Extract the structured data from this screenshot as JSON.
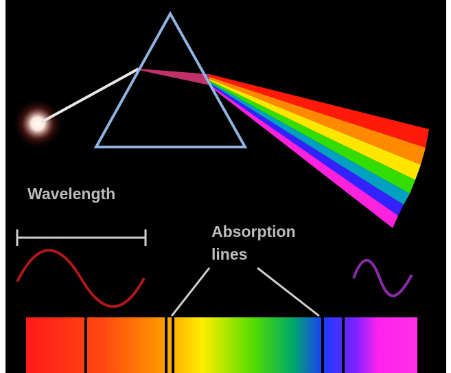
{
  "wavelength_label": "Wavelength",
  "absorption_label": {
    "line1": "Absorption",
    "line2": "lines"
  }
}
